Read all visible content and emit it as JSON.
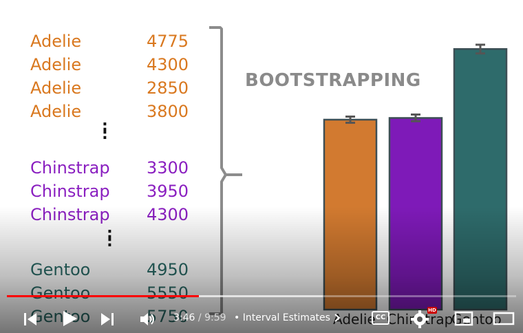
{
  "slide": {
    "table": [
      {
        "species": "Adelie",
        "mass": "4775",
        "color": "#d9781f"
      },
      {
        "species": "Adelie",
        "mass": "4300",
        "color": "#d9781f"
      },
      {
        "species": "Adelie",
        "mass": "2850",
        "color": "#d9781f"
      },
      {
        "species": "Adelie",
        "mass": "3800",
        "color": "#d9781f"
      },
      {
        "species": "Chinstrap",
        "mass": "3300",
        "color": "#8a1fc0"
      },
      {
        "species": "Chinstrap",
        "mass": "3950",
        "color": "#8a1fc0"
      },
      {
        "species": "Chinstrap",
        "mass": "4300",
        "color": "#8a1fc0"
      },
      {
        "species": "Gentoo",
        "mass": "4950",
        "color": "#2a6a66"
      },
      {
        "species": "Gentoo",
        "mass": "5550",
        "color": "#2a6a66"
      },
      {
        "species": "Gentoo",
        "mass": "5750",
        "color": "#2a6a66"
      }
    ],
    "ellipsis_glyph": ":",
    "title": "BOOTSTRAPPING"
  },
  "chart_data": {
    "type": "bar",
    "categories": [
      "Adelie",
      "Chinstrap",
      "Gentoo"
    ],
    "values": [
      3700,
      3733,
      5076
    ],
    "errors": [
      [
        3640,
        3760
      ],
      [
        3670,
        3800
      ],
      [
        4990,
        5160
      ]
    ],
    "colors": [
      "#d27a30",
      "#7e1ab8",
      "#2e6b6b"
    ],
    "ylim": [
      0,
      5200
    ]
  },
  "player": {
    "time_current": "3:46",
    "time_separator": " / ",
    "time_duration": "9:59",
    "chapter_separator": "•",
    "chapter_title": "Interval Estimates",
    "progress_played": 0.377,
    "progress_buffered": 0.62,
    "hd_badge": "HD",
    "cc_label": "CC",
    "colors": {
      "played": "#ff0000",
      "control": "#ffffff"
    }
  }
}
